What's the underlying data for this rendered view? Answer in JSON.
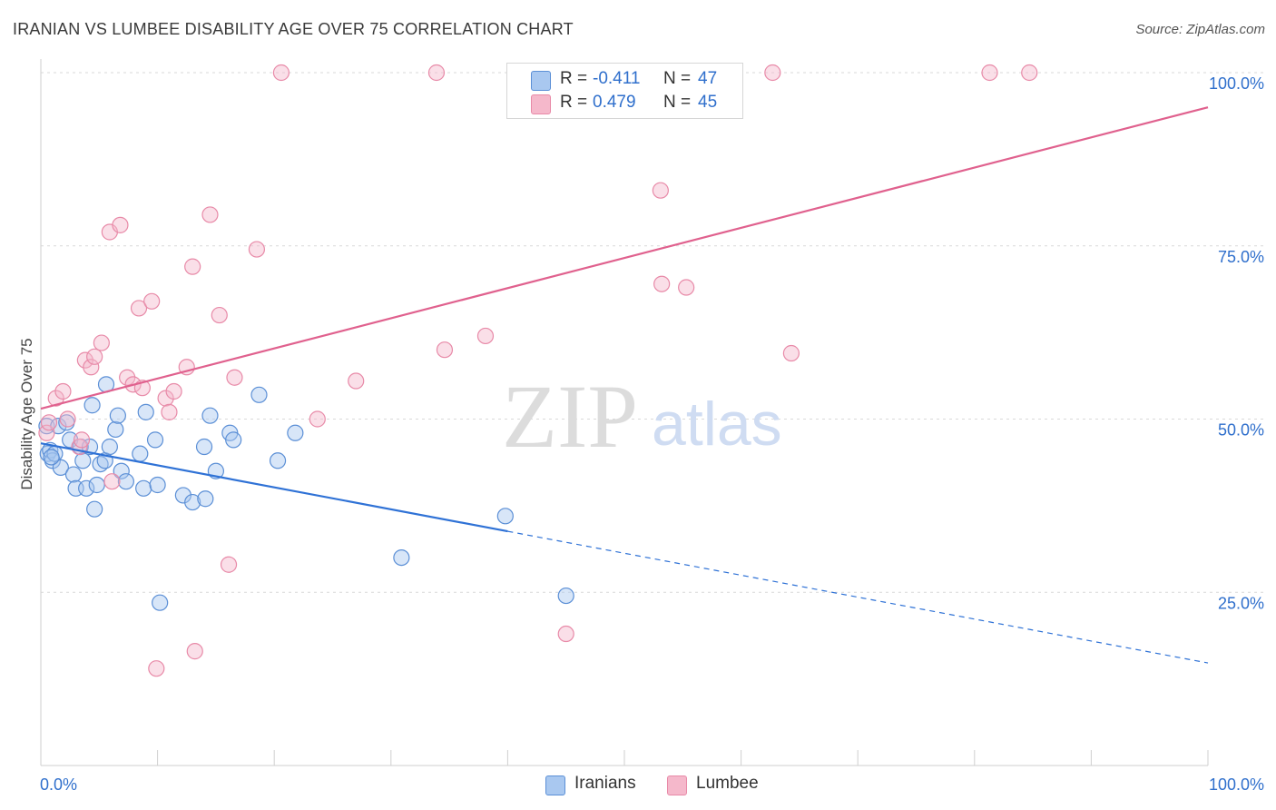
{
  "title": "IRANIAN VS LUMBEE DISABILITY AGE OVER 75 CORRELATION CHART",
  "source": "Source: ZipAtlas.com",
  "watermark": {
    "zip": "ZIP",
    "atlas": "atlas"
  },
  "legend": {
    "rows": [
      {
        "r_label": "R =",
        "r_value": "-0.411",
        "n_label": "N =",
        "n_value": "47",
        "color": "#a9c8f0"
      },
      {
        "r_label": "R =",
        "r_value": "0.479",
        "n_label": "N =",
        "n_value": "45",
        "color": "#f5b8cb"
      }
    ]
  },
  "bottom_legend": {
    "iranians": "Iranians",
    "lumbee": "Lumbee"
  },
  "colors": {
    "iranians_fill": "#a9c8f0",
    "iranians_stroke": "#5b8fd6",
    "iranians_line": "#2f72d6",
    "lumbee_fill": "#f5b8cb",
    "lumbee_stroke": "#e88aa8",
    "lumbee_line": "#e0618e",
    "grid": "#d9d9d9",
    "axis_text": "#2f6fcc"
  },
  "chart_data": {
    "type": "scatter",
    "title": "IRANIAN VS LUMBEE DISABILITY AGE OVER 75 CORRELATION CHART",
    "xlabel": "",
    "ylabel": "Disability Age Over 75",
    "xlim": [
      0,
      100
    ],
    "ylim": [
      0,
      105
    ],
    "x_tick_labels": [
      "0.0%",
      "100.0%"
    ],
    "y_ticks": [
      25,
      50,
      75,
      100
    ],
    "y_tick_labels": [
      "25.0%",
      "50.0%",
      "75.0%",
      "100.0%"
    ],
    "grid": "horizontal dashed",
    "series": [
      {
        "name": "Iranians",
        "r": -0.411,
        "n": 47,
        "trend": {
          "x0": 0,
          "y0": 46.5,
          "x1": 40,
          "y1": 33.8,
          "dashed_to_x": 100,
          "dashed_to_y": 14.8
        },
        "points": [
          [
            0.5,
            49
          ],
          [
            0.6,
            45
          ],
          [
            0.8,
            45.5
          ],
          [
            1.0,
            44
          ],
          [
            1.2,
            45
          ],
          [
            1.5,
            49
          ],
          [
            1.7,
            43
          ],
          [
            2.2,
            49.5
          ],
          [
            2.5,
            47
          ],
          [
            2.8,
            42
          ],
          [
            3.0,
            40
          ],
          [
            3.4,
            46
          ],
          [
            3.6,
            44
          ],
          [
            3.9,
            40
          ],
          [
            4.2,
            46
          ],
          [
            4.4,
            52
          ],
          [
            4.6,
            37
          ],
          [
            4.8,
            40.5
          ],
          [
            5.1,
            43.5
          ],
          [
            5.5,
            44
          ],
          [
            5.6,
            55
          ],
          [
            5.9,
            46
          ],
          [
            6.4,
            48.5
          ],
          [
            6.6,
            50.5
          ],
          [
            6.9,
            42.5
          ],
          [
            7.3,
            41
          ],
          [
            8.5,
            45
          ],
          [
            8.8,
            40
          ],
          [
            9.0,
            51
          ],
          [
            9.8,
            47
          ],
          [
            10.0,
            40.5
          ],
          [
            10.2,
            23.5
          ],
          [
            12.2,
            39
          ],
          [
            13.0,
            38
          ],
          [
            14.0,
            46
          ],
          [
            14.1,
            38.5
          ],
          [
            14.5,
            50.5
          ],
          [
            15.0,
            42.5
          ],
          [
            16.2,
            48
          ],
          [
            16.5,
            47
          ],
          [
            18.7,
            53.5
          ],
          [
            20.3,
            44
          ],
          [
            21.8,
            48
          ],
          [
            30.9,
            30
          ],
          [
            39.8,
            36
          ],
          [
            45.0,
            24.5
          ],
          [
            0.9,
            44.5
          ]
        ]
      },
      {
        "name": "Lumbee",
        "r": 0.479,
        "n": 45,
        "trend": {
          "x0": 0,
          "y0": 51.5,
          "x1": 100,
          "y1": 95
        },
        "points": [
          [
            0.5,
            48
          ],
          [
            0.7,
            49.5
          ],
          [
            1.3,
            53
          ],
          [
            1.9,
            54
          ],
          [
            2.3,
            50
          ],
          [
            3.3,
            46
          ],
          [
            3.5,
            47
          ],
          [
            3.8,
            58.5
          ],
          [
            4.3,
            57.5
          ],
          [
            4.6,
            59
          ],
          [
            5.2,
            61
          ],
          [
            5.9,
            77
          ],
          [
            6.1,
            41
          ],
          [
            6.8,
            78
          ],
          [
            7.4,
            56
          ],
          [
            7.9,
            55
          ],
          [
            8.4,
            66
          ],
          [
            8.7,
            54.5
          ],
          [
            9.5,
            67
          ],
          [
            9.9,
            14
          ],
          [
            10.7,
            53
          ],
          [
            11.0,
            51
          ],
          [
            11.4,
            54
          ],
          [
            12.5,
            57.5
          ],
          [
            13.0,
            72
          ],
          [
            13.2,
            16.5
          ],
          [
            14.5,
            79.5
          ],
          [
            15.3,
            65
          ],
          [
            16.1,
            29
          ],
          [
            16.6,
            56
          ],
          [
            18.5,
            74.5
          ],
          [
            20.6,
            100
          ],
          [
            23.7,
            50
          ],
          [
            27.0,
            55.5
          ],
          [
            33.9,
            100
          ],
          [
            34.6,
            60
          ],
          [
            38.1,
            62
          ],
          [
            45.0,
            19
          ],
          [
            53.1,
            83
          ],
          [
            53.2,
            69.5
          ],
          [
            55.3,
            69
          ],
          [
            62.7,
            100
          ],
          [
            64.3,
            59.5
          ],
          [
            81.3,
            100
          ],
          [
            84.7,
            100
          ]
        ]
      }
    ]
  }
}
